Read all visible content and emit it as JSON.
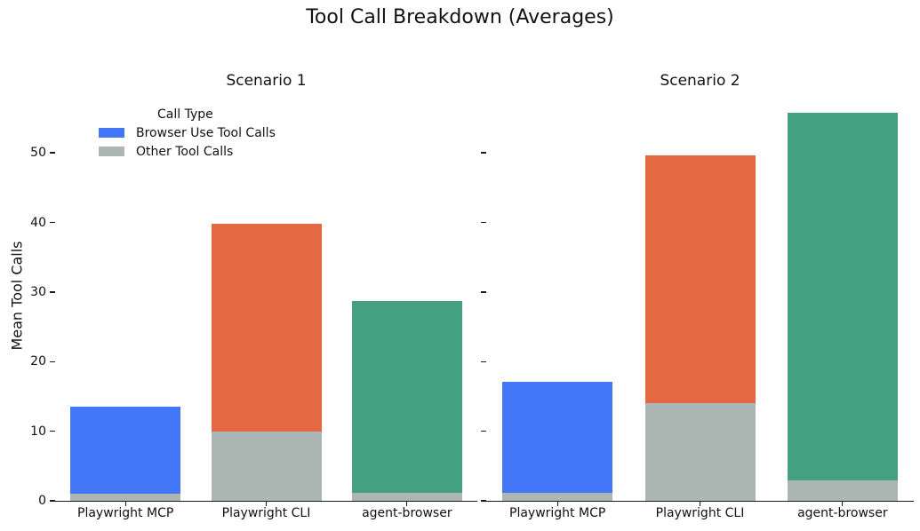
{
  "figure": {
    "title": "Tool Call Breakdown (Averages)",
    "ylabel": "Mean Tool Calls"
  },
  "legend": {
    "title": "Call Type",
    "entries": [
      {
        "label": "Browser Use Tool Calls",
        "color": "#4377F7"
      },
      {
        "label": "Other Tool Calls",
        "color": "#ACB7B3"
      }
    ]
  },
  "chart_data": {
    "type": "bar",
    "stacked": true,
    "title": "Tool Call Breakdown (Averages)",
    "ylabel": "Mean Tool Calls",
    "xlabel": "",
    "grid": false,
    "legend_position": "upper left of first facet",
    "categories": [
      "Playwright MCP",
      "Playwright CLI",
      "agent-browser"
    ],
    "category_colors": [
      "#4377F7",
      "#E46943",
      "#43A181"
    ],
    "other_color": "#ACB7B3",
    "y_ticks": [
      0,
      10,
      20,
      30,
      40,
      50
    ],
    "ylim": [
      0,
      58.7
    ],
    "facets": [
      {
        "title": "Scenario 1",
        "series": [
          {
            "name": "Other Tool Calls",
            "values": [
              1.0,
              10.0,
              1.1
            ]
          },
          {
            "name": "Browser Use Tool Calls",
            "values": [
              12.5,
              29.8,
              27.6
            ]
          }
        ],
        "stack_totals": [
          13.5,
          39.8,
          28.7
        ]
      },
      {
        "title": "Scenario 2",
        "series": [
          {
            "name": "Other Tool Calls",
            "values": [
              1.1,
              14.0,
              2.9
            ]
          },
          {
            "name": "Browser Use Tool Calls",
            "values": [
              16.0,
              35.7,
              52.9
            ]
          }
        ],
        "stack_totals": [
          17.1,
          49.7,
          55.8
        ]
      }
    ]
  }
}
